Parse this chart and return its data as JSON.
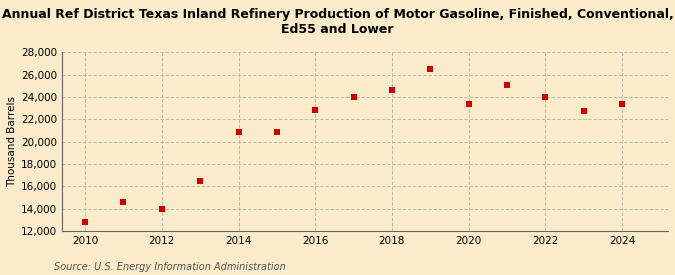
{
  "title": "Annual Ref District Texas Inland Refinery Production of Motor Gasoline, Finished, Conventional,\nEd55 and Lower",
  "ylabel": "Thousand Barrels",
  "source": "Source: U.S. Energy Information Administration",
  "background_color": "#faecca",
  "plot_bg_color": "#faecca",
  "years": [
    2010,
    2011,
    2012,
    2013,
    2014,
    2015,
    2016,
    2017,
    2018,
    2019,
    2020,
    2021,
    2022,
    2023,
    2024
  ],
  "values": [
    12800,
    14600,
    14000,
    16500,
    20900,
    20900,
    22800,
    24000,
    24600,
    26500,
    23400,
    25100,
    24000,
    22700,
    23400
  ],
  "marker_color": "#cc0000",
  "marker_size": 18,
  "ylim": [
    12000,
    28000
  ],
  "yticks": [
    12000,
    14000,
    16000,
    18000,
    20000,
    22000,
    24000,
    26000,
    28000
  ],
  "xlim": [
    2009.4,
    2025.2
  ],
  "xticks": [
    2010,
    2012,
    2014,
    2016,
    2018,
    2020,
    2022,
    2024
  ],
  "title_fontsize": 9,
  "axis_fontsize": 7.5,
  "source_fontsize": 7
}
